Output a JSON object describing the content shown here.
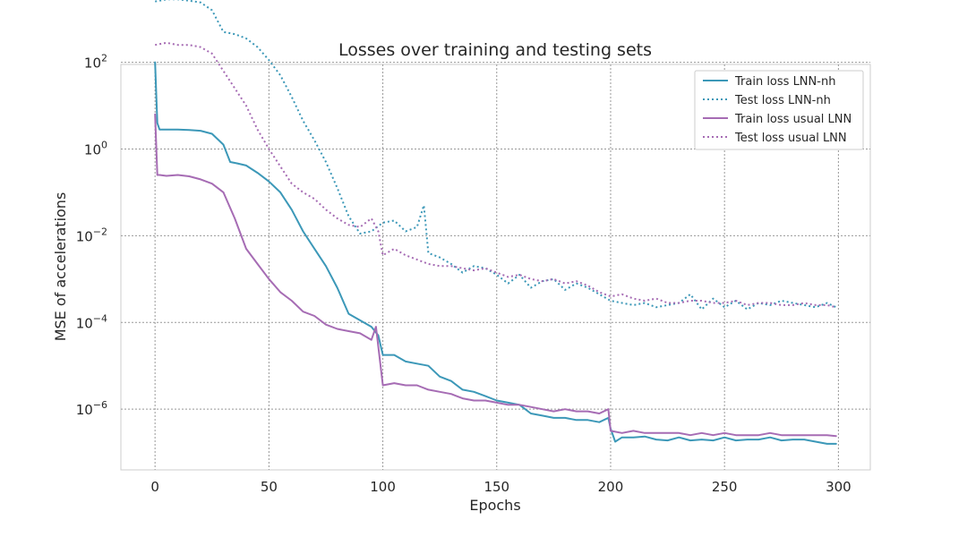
{
  "chart_data": {
    "type": "line",
    "title": "Losses over training and testing sets",
    "xlabel": "Epochs",
    "ylabel": "MSE of accelerations",
    "xlim": [
      -15,
      314
    ],
    "ylim_log10": [
      -7.4,
      1.95
    ],
    "xticks": [
      0,
      50,
      100,
      150,
      200,
      250,
      300
    ],
    "yticks": [
      {
        "exp": 2,
        "base": "10",
        "sup": "2"
      },
      {
        "exp": 0,
        "base": "10",
        "sup": "0"
      },
      {
        "exp": -2,
        "base": "10",
        "sup": "−2"
      },
      {
        "exp": -4,
        "base": "10",
        "sup": "−4"
      },
      {
        "exp": -6,
        "base": "10",
        "sup": "−6"
      }
    ],
    "grid": true,
    "legend_position": "top-right",
    "value_scale": "log10",
    "series": [
      {
        "name": "Train loss LNN-nh",
        "color": "#3c98b8",
        "style": "solid",
        "x": [
          0,
          1,
          2,
          5,
          10,
          15,
          20,
          25,
          30,
          33,
          36,
          40,
          45,
          50,
          55,
          60,
          65,
          70,
          75,
          80,
          85,
          90,
          95,
          98,
          100,
          105,
          110,
          115,
          120,
          125,
          130,
          135,
          140,
          145,
          150,
          155,
          160,
          165,
          170,
          175,
          180,
          185,
          190,
          195,
          199,
          200,
          202,
          205,
          210,
          215,
          220,
          225,
          230,
          235,
          240,
          245,
          250,
          255,
          260,
          265,
          270,
          275,
          280,
          285,
          290,
          295,
          299
        ],
        "values": [
          2.0,
          0.6,
          0.45,
          0.45,
          0.45,
          0.44,
          0.42,
          0.35,
          0.1,
          -0.3,
          -0.33,
          -0.38,
          -0.55,
          -0.75,
          -1.0,
          -1.4,
          -1.9,
          -2.3,
          -2.7,
          -3.2,
          -3.8,
          -3.95,
          -4.1,
          -4.3,
          -4.75,
          -4.75,
          -4.9,
          -4.95,
          -5.0,
          -5.25,
          -5.35,
          -5.55,
          -5.6,
          -5.7,
          -5.8,
          -5.85,
          -5.9,
          -6.1,
          -6.15,
          -6.2,
          -6.2,
          -6.25,
          -6.25,
          -6.3,
          -6.2,
          -6.45,
          -6.75,
          -6.65,
          -6.65,
          -6.63,
          -6.7,
          -6.72,
          -6.65,
          -6.72,
          -6.7,
          -6.72,
          -6.65,
          -6.72,
          -6.7,
          -6.7,
          -6.65,
          -6.72,
          -6.7,
          -6.7,
          -6.75,
          -6.8,
          -6.8
        ]
      },
      {
        "name": "Test loss LNN-nh",
        "color": "#3c98b8",
        "style": "dotted",
        "x": [
          0,
          5,
          10,
          15,
          20,
          25,
          30,
          35,
          40,
          45,
          50,
          55,
          60,
          65,
          70,
          75,
          80,
          85,
          90,
          95,
          100,
          105,
          110,
          115,
          118,
          120,
          125,
          130,
          135,
          140,
          145,
          150,
          155,
          160,
          165,
          170,
          175,
          180,
          185,
          190,
          195,
          200,
          205,
          210,
          215,
          220,
          225,
          230,
          235,
          240,
          245,
          250,
          255,
          260,
          265,
          270,
          275,
          280,
          285,
          290,
          295,
          299
        ],
        "values": [
          3.4,
          3.45,
          3.45,
          3.42,
          3.38,
          3.2,
          2.7,
          2.65,
          2.55,
          2.35,
          2.05,
          1.7,
          1.2,
          0.65,
          0.2,
          -0.3,
          -0.9,
          -1.55,
          -1.95,
          -1.9,
          -1.7,
          -1.65,
          -1.9,
          -1.8,
          -1.3,
          -2.4,
          -2.5,
          -2.65,
          -2.85,
          -2.7,
          -2.75,
          -2.9,
          -3.1,
          -2.9,
          -3.2,
          -3.05,
          -3.0,
          -3.25,
          -3.1,
          -3.2,
          -3.35,
          -3.5,
          -3.55,
          -3.6,
          -3.55,
          -3.65,
          -3.6,
          -3.55,
          -3.35,
          -3.7,
          -3.45,
          -3.65,
          -3.5,
          -3.7,
          -3.55,
          -3.6,
          -3.5,
          -3.55,
          -3.6,
          -3.65,
          -3.55,
          -3.65
        ]
      },
      {
        "name": "Train loss usual LNN",
        "color": "#a66cb4",
        "style": "solid",
        "x": [
          0,
          1,
          2,
          5,
          10,
          15,
          20,
          25,
          30,
          35,
          40,
          45,
          50,
          55,
          60,
          65,
          70,
          75,
          80,
          85,
          90,
          95,
          97,
          100,
          105,
          110,
          115,
          120,
          125,
          130,
          135,
          140,
          145,
          150,
          155,
          160,
          165,
          170,
          175,
          180,
          185,
          190,
          195,
          199,
          200,
          205,
          210,
          215,
          220,
          225,
          230,
          235,
          240,
          245,
          250,
          255,
          260,
          265,
          270,
          275,
          280,
          285,
          290,
          295,
          299
        ],
        "values": [
          0.8,
          -0.6,
          -0.6,
          -0.62,
          -0.6,
          -0.63,
          -0.7,
          -0.8,
          -1.0,
          -1.6,
          -2.3,
          -2.65,
          -3.0,
          -3.3,
          -3.5,
          -3.75,
          -3.85,
          -4.05,
          -4.15,
          -4.2,
          -4.25,
          -4.4,
          -4.1,
          -5.45,
          -5.4,
          -5.45,
          -5.45,
          -5.55,
          -5.6,
          -5.65,
          -5.75,
          -5.8,
          -5.8,
          -5.85,
          -5.9,
          -5.9,
          -5.95,
          -6.0,
          -6.05,
          -6.0,
          -6.05,
          -6.05,
          -6.1,
          -6.0,
          -6.5,
          -6.55,
          -6.5,
          -6.55,
          -6.55,
          -6.55,
          -6.55,
          -6.6,
          -6.55,
          -6.6,
          -6.55,
          -6.6,
          -6.6,
          -6.6,
          -6.55,
          -6.6,
          -6.6,
          -6.6,
          -6.6,
          -6.6,
          -6.62
        ]
      },
      {
        "name": "Test loss usual LNN",
        "color": "#a66cb4",
        "style": "dotted",
        "x": [
          0,
          5,
          10,
          15,
          20,
          25,
          30,
          35,
          40,
          45,
          50,
          55,
          60,
          65,
          70,
          75,
          80,
          85,
          90,
          95,
          98,
          100,
          105,
          110,
          115,
          120,
          125,
          130,
          135,
          140,
          145,
          150,
          155,
          160,
          165,
          170,
          175,
          180,
          185,
          190,
          195,
          200,
          205,
          210,
          215,
          220,
          225,
          230,
          235,
          240,
          245,
          250,
          255,
          260,
          265,
          270,
          275,
          280,
          285,
          290,
          295,
          299
        ],
        "values": [
          2.4,
          2.45,
          2.4,
          2.4,
          2.35,
          2.2,
          1.8,
          1.4,
          1.0,
          0.45,
          0.0,
          -0.4,
          -0.8,
          -1.0,
          -1.15,
          -1.4,
          -1.6,
          -1.75,
          -1.8,
          -1.6,
          -1.9,
          -2.45,
          -2.3,
          -2.45,
          -2.55,
          -2.65,
          -2.7,
          -2.7,
          -2.75,
          -2.8,
          -2.75,
          -2.85,
          -2.95,
          -2.9,
          -3.0,
          -3.05,
          -3.0,
          -3.1,
          -3.05,
          -3.15,
          -3.3,
          -3.4,
          -3.35,
          -3.45,
          -3.5,
          -3.45,
          -3.55,
          -3.55,
          -3.5,
          -3.5,
          -3.55,
          -3.55,
          -3.5,
          -3.6,
          -3.55,
          -3.55,
          -3.6,
          -3.6,
          -3.55,
          -3.6,
          -3.6,
          -3.65
        ]
      }
    ]
  }
}
